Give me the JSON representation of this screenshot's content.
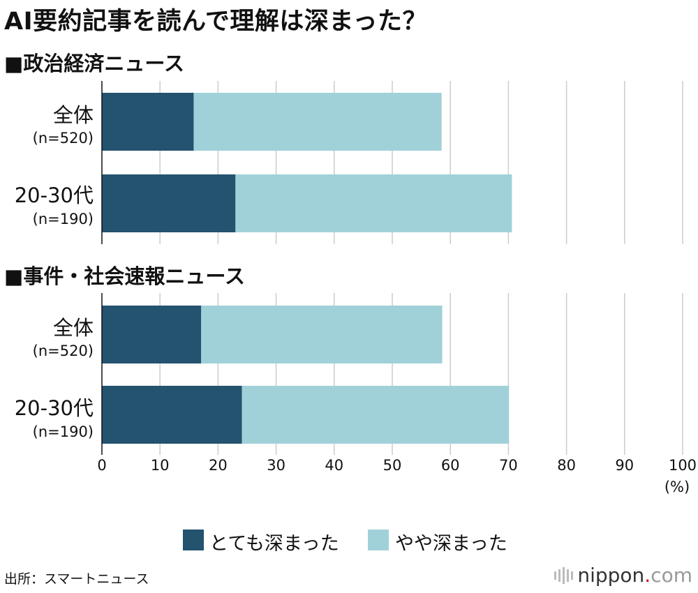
{
  "chart_data": {
    "type": "bar",
    "orientation": "horizontal",
    "stacked": true,
    "title": "AI要約記事を読んで理解は深まった？",
    "xlim": [
      0,
      100
    ],
    "xticks": [
      "0",
      "10",
      "20",
      "30",
      "40",
      "50",
      "60",
      "70",
      "80",
      "90",
      "100"
    ],
    "xunit": "(%)",
    "grid": true,
    "legend_position": "bottom",
    "series_colors": [
      "#23536f",
      "#a0d1d8"
    ],
    "legend": [
      "とても深まった",
      "やや深まった"
    ],
    "groups": [
      {
        "title": "■政治経済ニュース",
        "bars": [
          {
            "label": "全体",
            "n": "(n=520)",
            "values": [
              15.8,
              42.7
            ]
          },
          {
            "label": "20-30代",
            "n": "(n=190)",
            "values": [
              23.0,
              47.6
            ]
          }
        ]
      },
      {
        "title": "■事件・社会速報ニュース",
        "bars": [
          {
            "label": "全体",
            "n": "(n=520)",
            "values": [
              17.1,
              41.5
            ]
          },
          {
            "label": "20-30代",
            "n": "(n=190)",
            "values": [
              24.1,
              46.0
            ]
          }
        ]
      }
    ]
  },
  "source": "出所：スマートニュース",
  "logo": {
    "name": "nippon",
    "dot": ".",
    "suffix": "com"
  }
}
